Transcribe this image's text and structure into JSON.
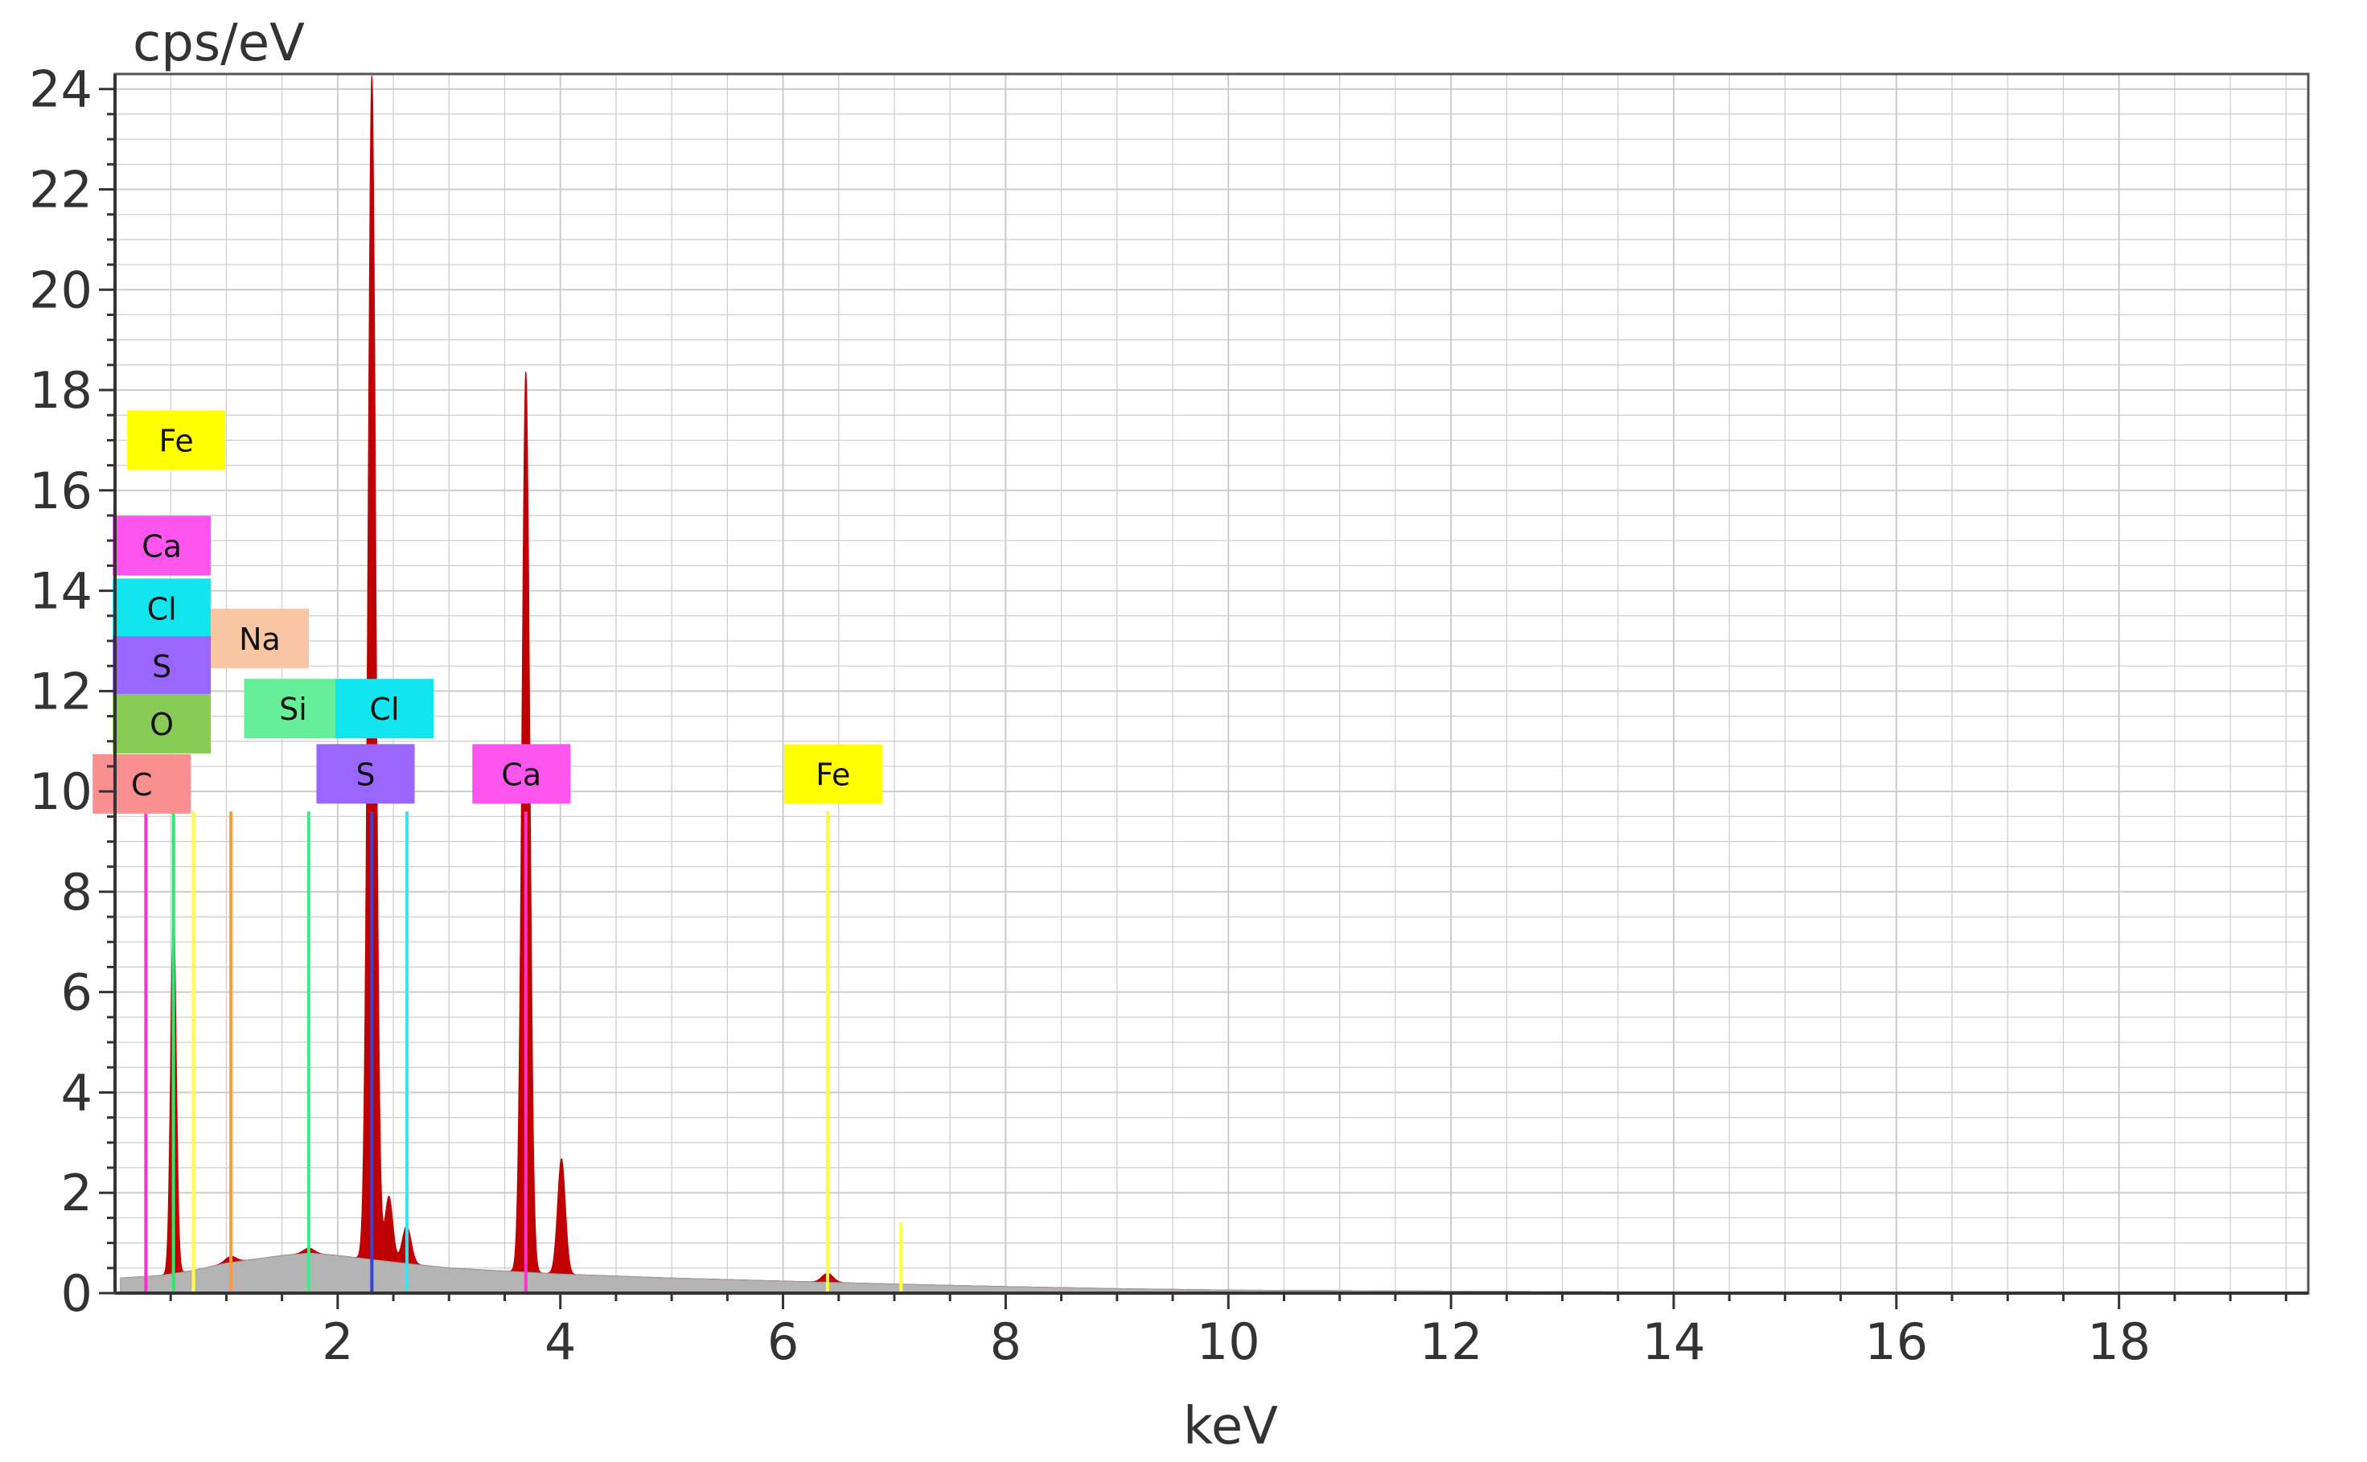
{
  "chart_data": {
    "type": "area",
    "title": "",
    "ylabel": "cps/eV",
    "xlabel": "keV",
    "xlim": [
      0,
      19.7
    ],
    "ylim": [
      0,
      24.3
    ],
    "x_ticks": [
      2,
      4,
      6,
      8,
      10,
      12,
      14,
      16,
      18
    ],
    "y_ticks": [
      0,
      2,
      4,
      6,
      8,
      10,
      12,
      14,
      16,
      18,
      20,
      22,
      24
    ],
    "grid": true,
    "colors": {
      "spectrum": "#c00000",
      "background": "#b4b4b4",
      "grid": "#cccccc",
      "axis": "#555555"
    },
    "spectrum": {
      "baseline_points": [
        [
          0.05,
          0.3
        ],
        [
          0.4,
          0.35
        ],
        [
          0.7,
          0.45
        ],
        [
          1.0,
          0.6
        ],
        [
          1.5,
          0.75
        ],
        [
          1.75,
          0.8
        ],
        [
          2.0,
          0.75
        ],
        [
          2.5,
          0.62
        ],
        [
          3.0,
          0.5
        ],
        [
          4.0,
          0.38
        ],
        [
          5.0,
          0.3
        ],
        [
          6.0,
          0.24
        ],
        [
          7.0,
          0.18
        ],
        [
          8.0,
          0.13
        ],
        [
          9.0,
          0.09
        ],
        [
          10.0,
          0.06
        ],
        [
          12.0,
          0.04
        ],
        [
          14.0,
          0.02
        ],
        [
          16.0,
          0.01
        ],
        [
          19.7,
          0.0
        ]
      ],
      "peaks": [
        {
          "element": "O",
          "center": 0.525,
          "height": 7.3,
          "width": 0.025
        },
        {
          "element": "Na",
          "center": 1.04,
          "height": 0.12,
          "width": 0.05
        },
        {
          "element": "Si",
          "center": 1.74,
          "height": 0.1,
          "width": 0.05
        },
        {
          "element": "S",
          "center": 2.307,
          "height": 23.6,
          "width": 0.035
        },
        {
          "element": "S",
          "center": 2.46,
          "height": 1.3,
          "width": 0.035
        },
        {
          "element": "Cl",
          "center": 2.62,
          "height": 0.75,
          "width": 0.04
        },
        {
          "element": "Ca",
          "center": 3.69,
          "height": 17.95,
          "width": 0.035
        },
        {
          "element": "Ca",
          "center": 4.01,
          "height": 2.3,
          "width": 0.035
        },
        {
          "element": "Fe",
          "center": 6.4,
          "height": 0.18,
          "width": 0.05
        }
      ]
    },
    "element_lines": [
      {
        "element": "C",
        "energy": 0.277,
        "height": 9.6,
        "color": "#ff33cc"
      },
      {
        "element": "O",
        "energy": 0.525,
        "height": 9.6,
        "color": "#2ee86b"
      },
      {
        "element": "Fe",
        "energy": 0.705,
        "height": 9.6,
        "color": "#ffff33"
      },
      {
        "element": "Na",
        "energy": 1.041,
        "height": 9.6,
        "color": "#ff9a40"
      },
      {
        "element": "Si",
        "energy": 1.74,
        "height": 9.6,
        "color": "#3dea8a"
      },
      {
        "element": "S",
        "energy": 2.307,
        "height": 9.6,
        "color": "#3344dd"
      },
      {
        "element": "Cl",
        "energy": 2.622,
        "height": 9.6,
        "color": "#37e3ef"
      },
      {
        "element": "Ca",
        "energy": 3.69,
        "height": 9.6,
        "color": "#ff33cc"
      },
      {
        "element": "Fe",
        "energy": 6.4,
        "height": 9.6,
        "color": "#ffff33"
      },
      {
        "element": "Fe",
        "energy": 7.06,
        "height": 1.4,
        "color": "#ffff33"
      }
    ],
    "element_labels": [
      {
        "text": "Fe",
        "x": 0.55,
        "y": 17.0,
        "color": "#ffff00"
      },
      {
        "text": "Ca",
        "x": 0.42,
        "y": 14.9,
        "color": "#ff55ee"
      },
      {
        "text": "Cl",
        "x": 0.42,
        "y": 13.65,
        "color": "#11e6ee"
      },
      {
        "text": "Na",
        "x": 1.3,
        "y": 13.05,
        "color": "#f9c6a4"
      },
      {
        "text": "S",
        "x": 0.42,
        "y": 12.5,
        "color": "#9966ff"
      },
      {
        "text": "Si",
        "x": 1.6,
        "y": 11.65,
        "color": "#66ee99"
      },
      {
        "text": "Cl",
        "x": 2.42,
        "y": 11.65,
        "color": "#11e6ee"
      },
      {
        "text": "O",
        "x": 0.42,
        "y": 11.35,
        "color": "#88cc55"
      },
      {
        "text": "C",
        "x": 0.24,
        "y": 10.15,
        "color": "#fa8f8f"
      },
      {
        "text": "S",
        "x": 2.25,
        "y": 10.35,
        "color": "#9966ff"
      },
      {
        "text": "Ca",
        "x": 3.65,
        "y": 10.35,
        "color": "#ff55ee"
      },
      {
        "text": "Fe",
        "x": 6.45,
        "y": 10.35,
        "color": "#ffff00"
      }
    ]
  }
}
